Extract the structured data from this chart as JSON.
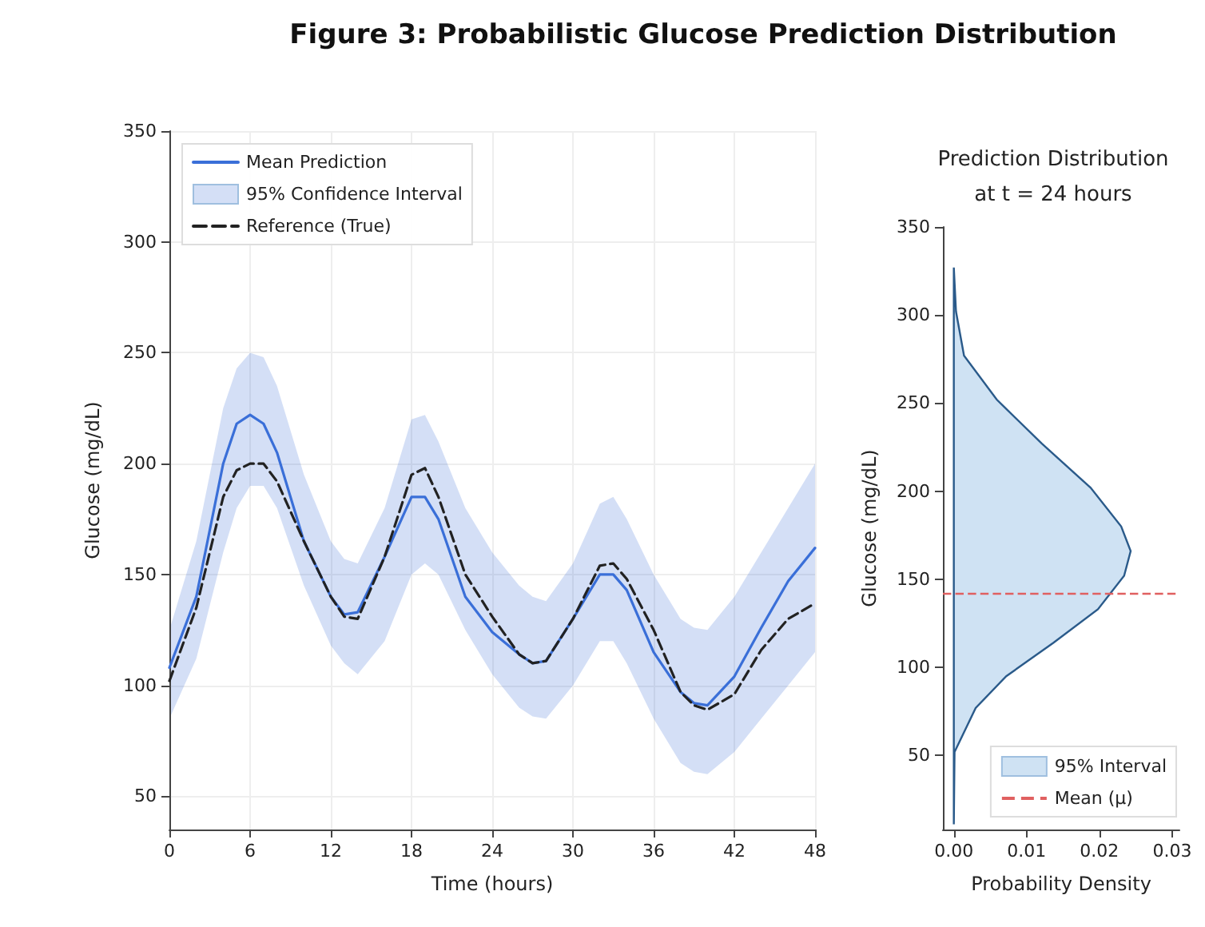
{
  "chart_data": [
    {
      "type": "line",
      "title": "Figure 3: Probabilistic Glucose Prediction Distribution",
      "xlabel": "Time (hours)",
      "ylabel": "Glucose (mg/dL)",
      "xlim": [
        0,
        48
      ],
      "xticks": [
        0,
        6,
        12,
        18,
        24,
        30,
        36,
        42,
        48
      ],
      "ylim": [
        35,
        350
      ],
      "yticks": [
        50,
        100,
        150,
        200,
        250,
        300,
        350
      ],
      "grid": true,
      "legend": "top left",
      "annotations": [
        "95% Confidence Interval"
      ],
      "series": [
        {
          "name": "Mean Prediction",
          "color": "#3a6fd8",
          "line_style": "solid",
          "x": [
            0,
            2,
            4,
            5,
            6,
            7,
            8,
            10,
            12,
            13,
            14,
            16,
            18,
            19,
            20,
            22,
            24,
            26,
            27,
            28,
            30,
            32,
            33,
            34,
            36,
            38,
            39,
            40,
            42,
            44,
            46,
            48
          ],
          "values": [
            108,
            140,
            200,
            218,
            222,
            218,
            205,
            165,
            140,
            132,
            133,
            158,
            185,
            185,
            175,
            140,
            124,
            114,
            110,
            111,
            130,
            150,
            150,
            143,
            115,
            97,
            92,
            91,
            104,
            126,
            147,
            162
          ],
          "upper": [
            125,
            165,
            225,
            243,
            250,
            248,
            235,
            195,
            165,
            157,
            155,
            180,
            220,
            222,
            210,
            180,
            160,
            145,
            140,
            138,
            155,
            182,
            185,
            175,
            150,
            130,
            126,
            125,
            140,
            160,
            180,
            200
          ],
          "lower": [
            85,
            112,
            160,
            180,
            190,
            190,
            180,
            145,
            118,
            110,
            105,
            120,
            150,
            155,
            150,
            125,
            105,
            90,
            86,
            85,
            100,
            120,
            120,
            110,
            85,
            65,
            61,
            60,
            70,
            85,
            100,
            115
          ]
        },
        {
          "name": "Reference (True)",
          "color": "#222222",
          "line_style": "dashed",
          "x": [
            0,
            2,
            4,
            5,
            6,
            7,
            8,
            10,
            12,
            13,
            14,
            16,
            18,
            19,
            20,
            22,
            24,
            26,
            27,
            28,
            30,
            32,
            33,
            34,
            36,
            38,
            39,
            40,
            42,
            44,
            46,
            48
          ],
          "values": [
            102,
            135,
            185,
            197,
            200,
            200,
            192,
            165,
            140,
            131,
            130,
            158,
            195,
            198,
            185,
            150,
            131,
            114,
            110,
            111,
            130,
            154,
            155,
            148,
            125,
            97,
            91,
            89,
            96,
            116,
            130,
            137
          ]
        }
      ]
    },
    {
      "type": "area",
      "title": "Prediction Distribution\nat t = 24 hours",
      "xlabel": "Probability Density",
      "ylabel": "Glucose (mg/dL)",
      "xlim": [
        -0.0015,
        0.031
      ],
      "xticks": [
        {
          "value": 0,
          "label": "0.00"
        },
        {
          "value": 0.01,
          "label": "0.01"
        },
        {
          "value": 0.02,
          "label": "0.02"
        },
        {
          "value": 0.03,
          "label": "0.03"
        }
      ],
      "ylim": [
        8,
        350
      ],
      "yticks": [
        50,
        100,
        150,
        200,
        250,
        300,
        350
      ],
      "legend": "bottom right",
      "ref_lines": [
        {
          "axis": "y",
          "value": 142,
          "label": "Mean (μ)",
          "color": "#e06060",
          "line_style": "dashed"
        }
      ],
      "series": [
        {
          "name": "95% Interval",
          "color": "#cfe2f3",
          "x": [
            0,
            0.0003,
            0.0014,
            0.0059,
            0.0121,
            0.0188,
            0.023,
            0.0243,
            0.0234,
            0.0198,
            0.0137,
            0.0072,
            0.003,
            0.0001,
            0
          ],
          "values": [
            327,
            302,
            277,
            252,
            227,
            202,
            180,
            166,
            152,
            133,
            114,
            95,
            77,
            52,
            11
          ]
        }
      ]
    }
  ]
}
